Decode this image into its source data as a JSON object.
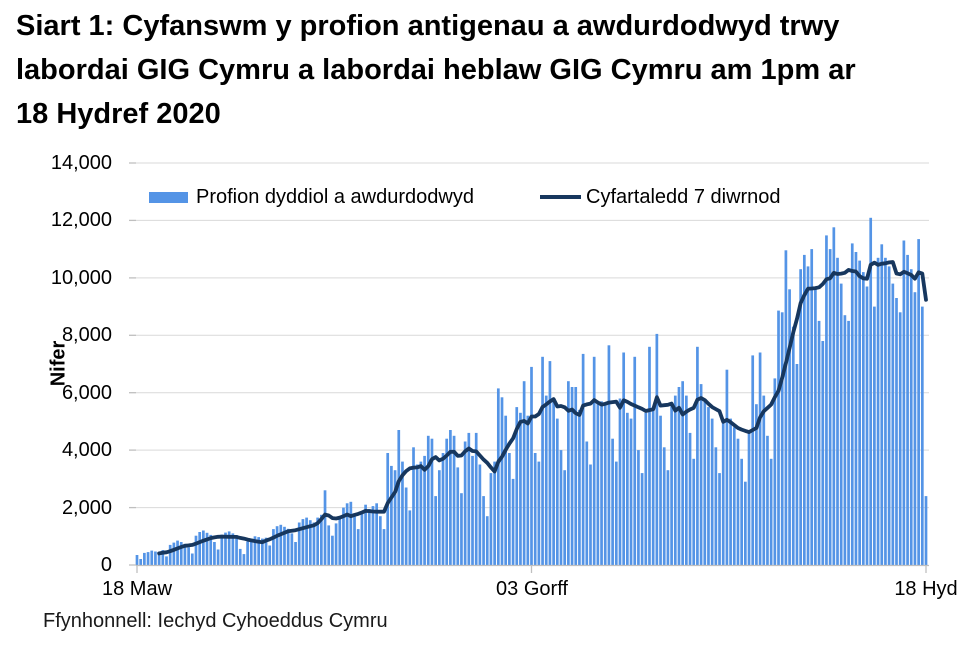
{
  "title": {
    "text": "Siart 1: Cyfanswm y profion antigenau a awdurdodwyd trwy labordai GIG Cymru a labordai heblaw GIG Cymru am 1pm ar 18 Hydref 2020"
  },
  "legend": {
    "bars_label": "Profion dyddiol a awdurdodwyd",
    "line_label": "Cyfartaledd 7 diwrnod"
  },
  "axes": {
    "y_label": "Nifer",
    "y_tick_labels": [
      "0",
      "2,000",
      "4,000",
      "6,000",
      "8,000",
      "10,000",
      "12,000",
      "14,000"
    ],
    "x_tick_labels": [
      "18 Maw",
      "03 Gorff",
      "18 Hyd"
    ]
  },
  "source": {
    "text": "Ffynhonnell: Iechyd Cyhoeddus Cymru"
  },
  "colors": {
    "bar": "#5494E6",
    "line": "#17375E",
    "grid": "#D9D9D9",
    "axis": "#BFBFBF"
  },
  "chart_data": {
    "type": "bar",
    "title": "Siart 1: Cyfanswm y profion antigenau a awdurdodwyd trwy labordai GIG Cymru a labordai heblaw GIG Cymru am 1pm ar 18 Hydref 2020",
    "xlabel": "",
    "ylabel": "Nifer",
    "ylim": [
      0,
      14000
    ],
    "y_tick_step": 2000,
    "grid": true,
    "legend_position": "top-left",
    "x_range": "18 Maw 2020 - 18 Hyd 2020 (daily)",
    "x_tick_positions": [
      0,
      107,
      214
    ],
    "x_tick_labels": [
      "18 Maw",
      "03 Gorff",
      "18 Hyd"
    ],
    "series": [
      {
        "name": "Profion dyddiol a awdurdodwyd",
        "type": "bar",
        "values": [
          350,
          210,
          420,
          450,
          500,
          470,
          430,
          520,
          300,
          700,
          780,
          850,
          800,
          740,
          620,
          400,
          1020,
          1150,
          1200,
          1120,
          1050,
          800,
          540,
          1060,
          1130,
          1170,
          1100,
          1040,
          560,
          380,
          820,
          920,
          1000,
          970,
          920,
          950,
          680,
          1250,
          1350,
          1400,
          1330,
          1260,
          1100,
          800,
          1480,
          1600,
          1650,
          1560,
          1480,
          1650,
          1750,
          2600,
          1380,
          1020,
          1450,
          1700,
          2000,
          2150,
          2200,
          1700,
          1250,
          1800,
          2100,
          1950,
          2050,
          2150,
          1700,
          1250,
          3900,
          3450,
          3300,
          4700,
          3600,
          2700,
          1900,
          4100,
          3500,
          3600,
          3800,
          4500,
          4400,
          2400,
          3300,
          3900,
          4400,
          4700,
          4500,
          3400,
          2500,
          4300,
          4600,
          3800,
          4600,
          3500,
          2400,
          1700,
          3200,
          3600,
          6150,
          5840,
          5200,
          3900,
          3000,
          5500,
          5300,
          6400,
          5200,
          6900,
          3900,
          3600,
          7250,
          5900,
          7100,
          5800,
          5100,
          4000,
          3300,
          6400,
          6200,
          6200,
          5400,
          7350,
          4300,
          3500,
          7250,
          5600,
          5700,
          5600,
          7650,
          4400,
          3600,
          5800,
          7400,
          5300,
          5100,
          7250,
          4000,
          3200,
          5300,
          7600,
          5500,
          8050,
          5200,
          4100,
          3300,
          5600,
          5900,
          6200,
          6400,
          5900,
          4600,
          3700,
          7600,
          6300,
          5700,
          5500,
          5100,
          4100,
          3200,
          5000,
          6800,
          5100,
          4800,
          4400,
          3700,
          2900,
          4700,
          7300,
          5600,
          7400,
          5900,
          4500,
          3700,
          6500,
          8860,
          8800,
          10960,
          9600,
          8300,
          7000,
          10300,
          10800,
          10400,
          11000,
          9700,
          8500,
          7800,
          11480,
          11000,
          11760,
          10700,
          9800,
          8700,
          8500,
          11200,
          10900,
          10600,
          10200,
          9700,
          12090,
          9000,
          10700,
          11170,
          10700,
          10400,
          9800,
          9300,
          8800,
          11300,
          10800,
          10300,
          9500,
          11350,
          9000,
          2400
        ]
      },
      {
        "name": "Cyfartaledd 7 diwrnod",
        "type": "line",
        "derived": "trailing_7_day_mean_of_bars"
      }
    ]
  }
}
